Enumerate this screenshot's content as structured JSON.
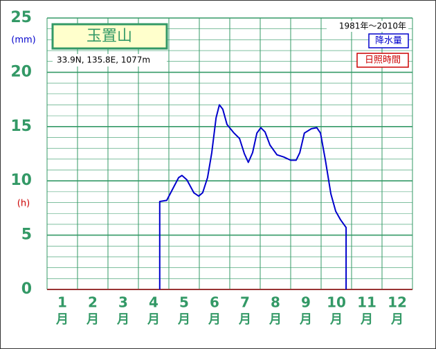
{
  "chart_data": {
    "type": "line",
    "title": "玉置山",
    "subtitle": "33.9N,  135.8E,  1077m",
    "period": "1981年～2010年",
    "y_unit_left": "(mm)",
    "y_unit_right": "(h)",
    "categories": [
      [
        "1",
        "月"
      ],
      [
        "2",
        "月"
      ],
      [
        "3",
        "月"
      ],
      [
        "4",
        "月"
      ],
      [
        "5",
        "月"
      ],
      [
        "6",
        "月"
      ],
      [
        "7",
        "月"
      ],
      [
        "8",
        "月"
      ],
      [
        "9",
        "月"
      ],
      [
        "10",
        "月"
      ],
      [
        "11",
        "月"
      ],
      [
        "12",
        "月"
      ]
    ],
    "xlim": [
      0,
      12
    ],
    "xticks": [
      0,
      1,
      2,
      3,
      4,
      5,
      6,
      7,
      8,
      9,
      10,
      11,
      12
    ],
    "ylim": [
      0,
      25
    ],
    "yticks": [
      0,
      5,
      10,
      15,
      20,
      25
    ],
    "y_minor_ticks": [
      1,
      2,
      3,
      4,
      6,
      7,
      8,
      9,
      11,
      12,
      13,
      14,
      16,
      17,
      18,
      19,
      21,
      22,
      23,
      24
    ],
    "grid": true,
    "legend": "top-right",
    "series": [
      {
        "name": "降水量",
        "color": "#0000cc",
        "x": [
          3.7,
          3.7,
          3.93,
          4.32,
          4.43,
          4.59,
          4.82,
          4.98,
          5.11,
          5.27,
          5.41,
          5.55,
          5.66,
          5.77,
          5.91,
          6.14,
          6.32,
          6.48,
          6.61,
          6.75,
          6.89,
          7.02,
          7.16,
          7.32,
          7.55,
          7.77,
          8.0,
          8.18,
          8.3,
          8.45,
          8.68,
          8.86,
          8.98,
          9.14,
          9.32,
          9.48,
          9.64,
          9.82,
          9.82
        ],
        "values": [
          0,
          8.1,
          8.2,
          10.3,
          10.5,
          10.1,
          8.9,
          8.6,
          8.9,
          10.3,
          12.6,
          15.8,
          17.0,
          16.6,
          15.2,
          14.4,
          13.9,
          12.5,
          11.7,
          12.6,
          14.4,
          14.9,
          14.5,
          13.3,
          12.4,
          12.2,
          11.9,
          11.9,
          12.6,
          14.4,
          14.8,
          14.9,
          14.4,
          11.9,
          8.8,
          7.2,
          6.4,
          5.7,
          0
        ]
      },
      {
        "name": "日照時間",
        "color": "#cc0000",
        "x": [],
        "values": []
      }
    ]
  }
}
